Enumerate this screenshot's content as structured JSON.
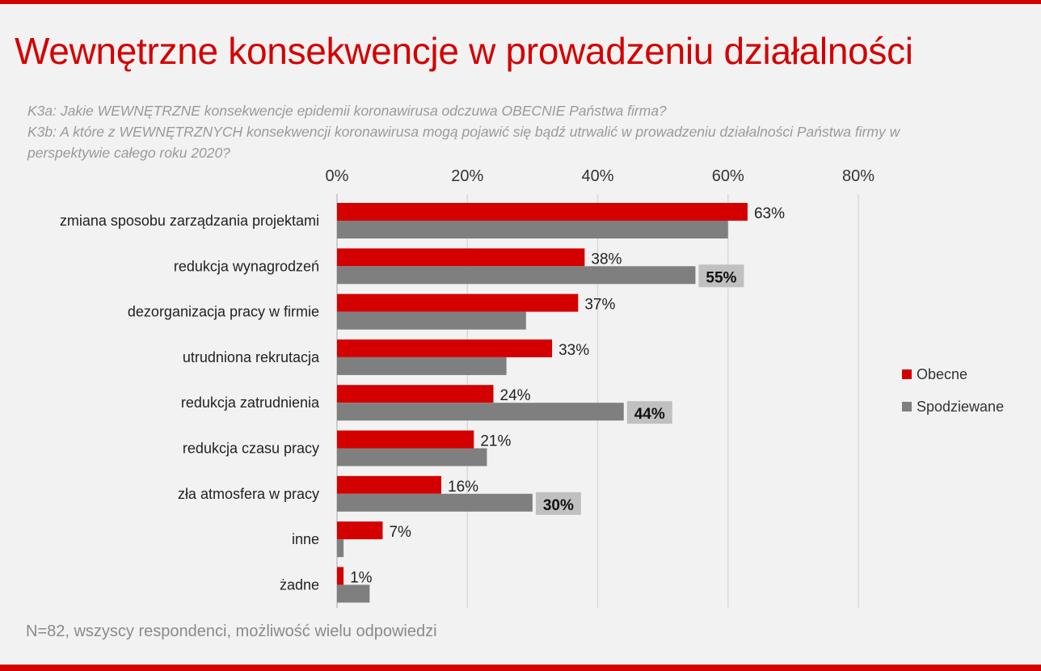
{
  "title": "Wewnętrzne konsekwencje w prowadzeniu działalności",
  "question_lines": [
    "K3a: Jakie WEWNĘTRZNE konsekwencje epidemii koronawirusa odczuwa OBECNIE Państwa firma?",
    "K3b: A które z WEWNĘTRZNYCH konsekwencji koronawirusa mogą pojawić się bądź utrwalić w prowadzeniu działalności Państwa firmy w",
    "perspektywie całego roku 2020?"
  ],
  "footnote": "N=82, wszyscy respondenci, możliwość wielu odpowiedzi",
  "colors": {
    "accent": "#d40000",
    "secondary": "#7f7f7f",
    "highlight_box": "#c0c0c0"
  },
  "chart_data": {
    "type": "bar",
    "orientation": "horizontal",
    "categories": [
      "zmiana sposobu zarządzania projektami",
      "redukcja wynagrodzeń",
      "dezorganizacja pracy w firmie",
      "utrudniona rekrutacja",
      "redukcja zatrudnienia",
      "redukcja czasu pracy",
      "zła atmosfera w pracy",
      "inne",
      "żadne"
    ],
    "series": [
      {
        "name": "Obecne",
        "color": "#d40000",
        "values": [
          63,
          38,
          37,
          33,
          24,
          21,
          16,
          7,
          1
        ],
        "labels": [
          "63%",
          "38%",
          "37%",
          "33%",
          "24%",
          "21%",
          "16%",
          "7%",
          "1%"
        ]
      },
      {
        "name": "Spodziewane",
        "color": "#7f7f7f",
        "values": [
          60,
          55,
          29,
          26,
          44,
          23,
          30,
          1,
          5
        ],
        "labels": [
          "",
          "55%",
          "",
          "",
          "44%",
          "",
          "30%",
          "",
          ""
        ]
      }
    ],
    "xlim": [
      0,
      80
    ],
    "x_ticks": [
      0,
      20,
      40,
      60,
      80
    ],
    "x_tick_labels": [
      "0%",
      "20%",
      "40%",
      "60%",
      "80%"
    ],
    "grid": true,
    "axis_position": "top",
    "legend_placement": "right"
  }
}
